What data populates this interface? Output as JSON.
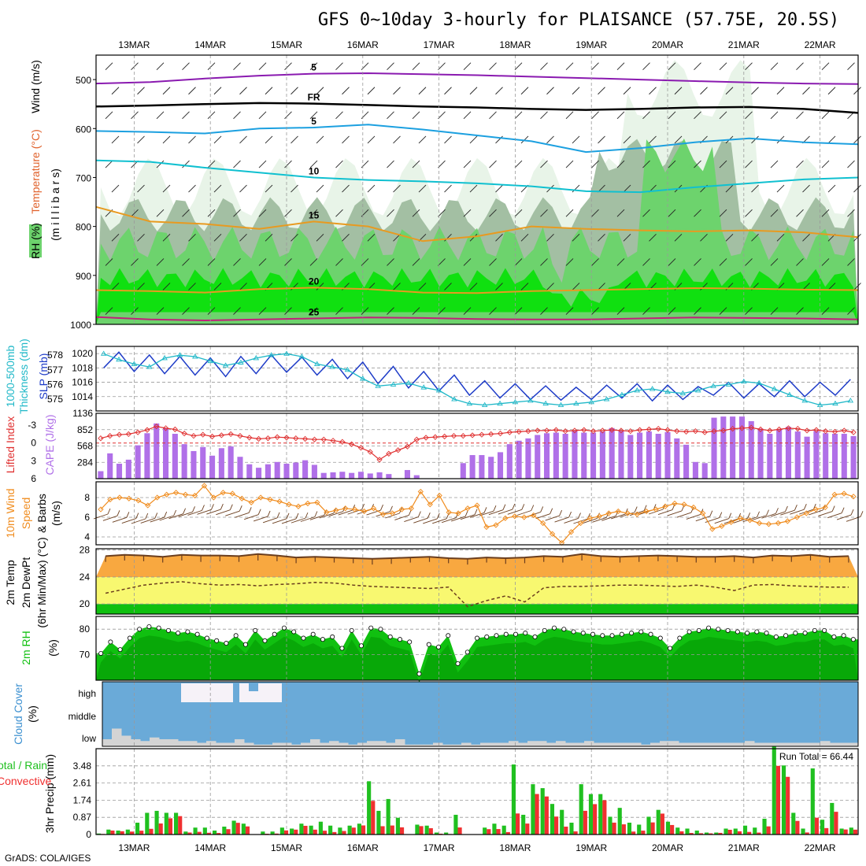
{
  "title": "GFS 0~10day 3-hourly for PLAISANCE (57.75E, 20.5S)",
  "credit": "GrADS: COLA/IGES",
  "colors": {
    "rh_light": "#e8f4e8",
    "rh_mid": "#c7d9c7",
    "rh_dark": "#a3bfa3",
    "rh_green": "#6dd36d",
    "rh_bright": "#10e010",
    "temp_purple": "#8a1ab0",
    "temp_blue": "#1ca0e0",
    "temp_cyan": "#10c0d0",
    "temp_orange": "#e89a20",
    "temp_magenta": "#c0207a",
    "slp": "#1e3cc8",
    "thickness": "#20b8c8",
    "cape": "#b070e8",
    "li": "#e03030",
    "wind10": "#f08c1e",
    "temp_band": "#f8a840",
    "dew_band": "#f8f870",
    "rh2m": "#10c010",
    "cloud": "#6aaad8",
    "cloud_low": "#d4d4d4",
    "cloud_high": "#f6f2f8",
    "precip_total": "#20c020",
    "precip_conv": "#f03030"
  },
  "chart_data": {
    "type": "multi-panel meteogram",
    "time_axis": {
      "labels": [
        "13MAR",
        "14MAR",
        "15MAR",
        "16MAR",
        "17MAR",
        "18MAR",
        "19MAR",
        "20MAR",
        "21MAR",
        "22MAR"
      ],
      "start_day": 12.5,
      "end_day": 22.5
    },
    "panels": [
      {
        "id": "profile",
        "ylabel_parts": [
          "RH (%)",
          "Temperature (°C)",
          "Wind (m/s)",
          "(m i l l i b a r s)"
        ],
        "yticks": [
          "500",
          "600",
          "700",
          "800",
          "900",
          "1000"
        ],
        "ylim": [
          450,
          1000
        ],
        "contours": [
          {
            "label": "5",
            "kind": "temp -5",
            "color": "purple",
            "level": [
              508,
              505,
              498,
              492,
              488,
              487,
              489,
              491,
              494,
              497,
              500,
              503,
              506,
              508,
              509
            ]
          },
          {
            "label": "FR",
            "kind": "freezing",
            "color": "black",
            "level": [
              555,
              553,
              550,
              548,
              549,
              552,
              555,
              557,
              560,
              562,
              560,
              557,
              556,
              560,
              568
            ]
          },
          {
            "label": "5",
            "kind": "temp 5",
            "color": "blue",
            "level": [
              605,
              607,
              610,
              600,
              598,
              592,
              602,
              614,
              626,
              648,
              640,
              628,
              620,
              628,
              632
            ]
          },
          {
            "label": "10",
            "kind": "temp 10",
            "color": "cyan",
            "level": [
              665,
              668,
              680,
              690,
              700,
              705,
              708,
              712,
              718,
              728,
              730,
              720,
              712,
              704,
              700
            ]
          },
          {
            "label": "15",
            "kind": "temp 15",
            "color": "orange",
            "level": [
              760,
              790,
              795,
              805,
              790,
              800,
              830,
              820,
              800,
              805,
              808,
              810,
              808,
              812,
              822
            ]
          },
          {
            "label": "20",
            "kind": "temp 20",
            "color": "orange",
            "level": [
              930,
              932,
              935,
              928,
              925,
              928,
              935,
              936,
              932,
              930,
              928,
              926,
              927,
              929,
              930
            ]
          },
          {
            "label": "25",
            "kind": "temp 25",
            "color": "magenta",
            "level": [
              985,
              990,
              992,
              990,
              988,
              986,
              987,
              989,
              990,
              990,
              988,
              986,
              987,
              988,
              990
            ]
          }
        ],
        "rh_shading_levels": [
          "30",
          "50",
          "70",
          "90"
        ],
        "wind_barbs": "mostly light easterly trade winds, 5-10 m/s"
      },
      {
        "id": "slp_thickness",
        "ylabel_parts": [
          "1000-500mb",
          "Thickness (dm)",
          "SLP (mb)"
        ],
        "left_ticks": [
          "578",
          "577",
          "576",
          "575"
        ],
        "right_ticks": [
          "1020",
          "1018",
          "1016",
          "1014"
        ],
        "series": [
          {
            "name": "SLP (mb)",
            "ylim": [
              1012,
              1021
            ],
            "values": [
              1018.0,
              1020.2,
              1017.5,
              1019.8,
              1017.2,
              1019.6,
              1017.0,
              1019.4,
              1016.8,
              1019.6,
              1017.2,
              1019.8,
              1017.4,
              1019.5,
              1017.0,
              1019.2,
              1016.5,
              1018.8,
              1015.8,
              1018.2,
              1015.2,
              1017.5,
              1014.8,
              1017.0,
              1014.2,
              1016.2,
              1013.8,
              1015.8,
              1013.6,
              1015.5,
              1013.5,
              1015.3,
              1013.6,
              1015.6,
              1013.8,
              1015.8,
              1013.4,
              1015.6,
              1013.6,
              1015.4,
              1014.2,
              1016.0,
              1013.8,
              1015.8,
              1014.0,
              1016.2,
              1014.0,
              1016.0,
              1014.2,
              1016.4
            ]
          },
          {
            "name": "Thickness (dm)",
            "ylim": [
              574.2,
              578.6
            ],
            "values": [
              578.1,
              577.7,
              577.4,
              577.2,
              577.8,
              578.0,
              577.9,
              577.6,
              577.3,
              577.5,
              577.8,
              578.0,
              578.1,
              577.9,
              577.4,
              577.2,
              577.0,
              576.4,
              575.9,
              576.0,
              576.1,
              575.8,
              575.6,
              575.0,
              574.7,
              574.6,
              574.7,
              574.8,
              574.9,
              574.7,
              574.6,
              574.7,
              574.8,
              575.0,
              575.3,
              575.6,
              575.7,
              575.5,
              575.4,
              575.6,
              575.9,
              576.0,
              576.2,
              576.1,
              575.7,
              575.3,
              574.9,
              574.6,
              574.7,
              574.9
            ]
          }
        ]
      },
      {
        "id": "cape_li",
        "ylabel_parts": [
          "Lifted Index",
          "CAPE (J/kg)"
        ],
        "left_ticks": [
          "-3",
          "0",
          "3",
          "6"
        ],
        "right_ticks": [
          "1136",
          "852",
          "568",
          "284"
        ],
        "series": [
          {
            "name": "CAPE (J/kg)",
            "ylim": [
              0,
              1136
            ],
            "values": [
              130,
              440,
              260,
              330,
              580,
              790,
              960,
              880,
              780,
              600,
              480,
              550,
              400,
              530,
              560,
              380,
              250,
              190,
              250,
              290,
              260,
              280,
              320,
              240,
              100,
              110,
              120,
              100,
              120,
              90,
              110,
              80,
              0,
              150,
              60,
              0,
              0,
              0,
              0,
              270,
              410,
              410,
              380,
              460,
              600,
              660,
              700,
              760,
              790,
              800,
              780,
              840,
              800,
              800,
              820,
              880,
              830,
              760,
              800,
              820,
              780,
              810,
              700,
              590,
              290,
              270,
              1060,
              1080,
              1080,
              1080,
              1000,
              870,
              780,
              860,
              900,
              820,
              730,
              830,
              790,
              780,
              780,
              740
            ]
          },
          {
            "name": "Lifted Index",
            "ylim": [
              6,
              -5
            ],
            "values": [
              -0.8,
              -1.2,
              -1.4,
              -1.5,
              -1.8,
              -2.2,
              -2.8,
              -2.5,
              -2.3,
              -1.6,
              -1.2,
              -1.4,
              -1.1,
              -1.3,
              -1.5,
              -1.2,
              -0.9,
              -0.7,
              -0.8,
              -1.0,
              -0.9,
              -0.8,
              -0.7,
              -0.6,
              -0.6,
              -0.4,
              -0.2,
              0.2,
              0.8,
              1.5,
              2.8,
              1.8,
              1.2,
              0.6,
              -0.6,
              -0.9,
              -1.0,
              -1.1,
              -1.2,
              -1.2,
              -1.3,
              -1.4,
              -1.5,
              -1.6,
              -1.8,
              -1.9,
              -2.0,
              -2.1,
              -2.1,
              -2.2,
              -2.0,
              -2.1,
              -2.2,
              -2.0,
              -2.1,
              -2.2,
              -2.1,
              -2.0,
              -2.2,
              -2.3,
              -2.4,
              -2.2,
              -2.0,
              -1.9,
              -2.0,
              -1.8,
              -2.0,
              -2.1,
              -2.4,
              -2.5,
              -2.6,
              -2.3,
              -2.1,
              -2.3,
              -2.5,
              -2.4,
              -2.1,
              -2.2,
              -2.0,
              -1.9,
              -2.1,
              -1.8
            ]
          }
        ]
      },
      {
        "id": "wind10m",
        "ylabel_parts": [
          "10m Wind",
          "Speed",
          "& Barbs",
          "(m/s)"
        ],
        "yticks": [
          "8",
          "6",
          "4"
        ],
        "ylim": [
          3.2,
          9.6
        ],
        "values": [
          6.8,
          7.8,
          8.0,
          7.9,
          7.7,
          7.2,
          8.0,
          8.3,
          8.5,
          8.3,
          8.2,
          9.2,
          8.0,
          8.5,
          8.4,
          7.9,
          7.5,
          8.0,
          7.8,
          7.6,
          7.3,
          7.1,
          7.4,
          7.5,
          6.5,
          6.7,
          6.9,
          6.8,
          6.6,
          6.9,
          6.3,
          6.4,
          6.8,
          6.9,
          8.6,
          7.3,
          8.2,
          6.5,
          6.4,
          6.9,
          7.2,
          5.0,
          5.2,
          5.9,
          6.1,
          6.0,
          6.2,
          5.4,
          4.3,
          3.4,
          4.5,
          5.4,
          5.9,
          6.1,
          6.4,
          6.6,
          6.4,
          6.3,
          6.6,
          6.8,
          7.1,
          7.4,
          7.3,
          7.0,
          6.4,
          4.8,
          5.1,
          5.5,
          5.9,
          5.7,
          5.4,
          5.3,
          5.4,
          5.6,
          6.0,
          6.4,
          6.8,
          7.0,
          8.3,
          8.4,
          8.1
        ]
      },
      {
        "id": "temp2m",
        "ylabel_parts": [
          "2m Temp",
          "2m DewPt",
          "(6hr Min/Max) (°C)"
        ],
        "yticks": [
          "28",
          "24",
          "20"
        ],
        "ylim": [
          18.5,
          28.2
        ],
        "temp_min": [
          26.6,
          26.8,
          26.7,
          26.5,
          26.8,
          26.6,
          26.7,
          26.6,
          26.8,
          26.7,
          26.4,
          26.6,
          26.5,
          26.4,
          26.2,
          26.3,
          26.5,
          26.6,
          26.4,
          26.2,
          26.5,
          26.3,
          26.4,
          26.6,
          26.5,
          26.8,
          26.6,
          26.5,
          26.6,
          26.7,
          26.6,
          26.5,
          26.5,
          26.6,
          26.4,
          26.7,
          26.6,
          26.8,
          26.5,
          26.5
        ],
        "temp_max": [
          27.1,
          27.3,
          27.2,
          27.0,
          27.3,
          27.2,
          27.2,
          27.1,
          27.4,
          27.2,
          26.9,
          27.0,
          26.9,
          26.8,
          26.7,
          26.8,
          26.9,
          27.0,
          26.8,
          26.7,
          26.9,
          26.8,
          26.9,
          27.1,
          27.0,
          27.4,
          27.1,
          27.0,
          27.1,
          27.2,
          27.1,
          27.0,
          27.0,
          27.1,
          26.9,
          27.2,
          27.1,
          27.3,
          27.0,
          27.1
        ],
        "dewpoint": [
          21.6,
          22.2,
          22.8,
          23.1,
          23.3,
          23.0,
          22.8,
          22.9,
          22.7,
          22.9,
          23.0,
          23.2,
          23.1,
          22.8,
          22.6,
          22.5,
          22.4,
          22.3,
          22.5,
          19.6,
          20.5,
          21.2,
          20.3,
          22.4,
          22.6,
          22.6,
          22.7,
          22.8,
          22.8,
          22.7,
          22.6,
          22.8,
          22.5,
          22.0,
          22.8,
          22.9,
          22.7,
          22.6,
          22.5,
          22.5
        ]
      },
      {
        "id": "rh2m",
        "ylabel_parts": [
          "2m RH",
          "(%)"
        ],
        "yticks": [
          "80",
          "70"
        ],
        "ylim": [
          60,
          85
        ],
        "values": [
          70.5,
          75.0,
          72.0,
          76.5,
          80.0,
          81.0,
          80.5,
          79.5,
          78.5,
          79.0,
          78.0,
          76.5,
          75.5,
          74.5,
          77.5,
          74.0,
          79.5,
          75.5,
          78.0,
          80.5,
          79.0,
          76.5,
          78.0,
          76.0,
          77.0,
          72.5,
          79.5,
          73.5,
          80.5,
          80.0,
          77.0,
          76.0,
          75.0,
          62.5,
          74.0,
          73.0,
          77.5,
          66.5,
          71.0,
          76.5,
          77.0,
          77.5,
          78.0,
          78.0,
          78.5,
          77.0,
          79.5,
          80.5,
          80.0,
          79.0,
          78.5,
          78.0,
          77.5,
          77.5,
          78.0,
          78.5,
          79.0,
          78.0,
          76.5,
          72.5,
          76.5,
          79.0,
          79.5,
          80.5,
          80.0,
          79.5,
          79.0,
          78.5,
          79.0,
          78.5,
          77.0,
          77.5,
          78.5,
          78.5,
          79.5,
          79.5,
          77.0,
          77.5,
          76.0
        ]
      },
      {
        "id": "cloud",
        "ylabel_parts": [
          "Cloud Cover",
          "(%)"
        ],
        "level_labels": [
          "high",
          "middle",
          "low"
        ],
        "low_cover_pct": [
          20,
          50,
          30,
          20,
          15,
          25,
          20,
          20,
          15,
          15,
          10,
          15,
          10,
          10,
          20,
          10,
          5,
          5,
          10,
          10,
          5,
          10,
          20,
          10,
          15,
          10,
          5,
          10,
          15,
          15,
          10,
          20,
          5,
          5,
          5,
          10,
          5,
          5,
          10,
          5,
          10,
          10,
          10,
          15,
          10,
          15,
          15,
          10,
          15,
          10,
          10,
          15,
          10,
          10,
          10,
          10,
          10,
          5,
          10,
          15,
          15,
          10,
          10,
          10,
          10,
          10,
          10,
          10,
          15,
          10,
          10,
          10,
          10,
          10,
          10,
          10,
          15,
          10,
          10,
          10
        ]
      },
      {
        "id": "precip",
        "ylabel_parts": [
          "3hr Precip (mm)",
          "Total / Rain",
          "Convective"
        ],
        "yticks": [
          "0",
          "0.87",
          "1.74",
          "2.61",
          "3.48"
        ],
        "ylim": [
          0,
          4.35
        ],
        "run_total_label": "Run Total = 66.44",
        "total": [
          0.05,
          0.25,
          0.2,
          0.25,
          0.6,
          1.1,
          1.2,
          1.1,
          1.1,
          0.15,
          0.35,
          0.35,
          0.2,
          0.4,
          0.7,
          0.55,
          0.0,
          0.15,
          0.15,
          0.35,
          0.3,
          0.55,
          0.45,
          0.65,
          0.45,
          0.35,
          0.45,
          0.55,
          2.7,
          1.2,
          1.8,
          0.85,
          0.0,
          0.5,
          0.45,
          0.1,
          0.1,
          1.0,
          0.0,
          0.0,
          0.35,
          0.55,
          0.45,
          3.55,
          1.0,
          2.55,
          2.35,
          1.55,
          1.25,
          0.6,
          2.55,
          2.05,
          2.05,
          0.9,
          1.35,
          0.6,
          0.5,
          0.9,
          1.25,
          0.65,
          0.35,
          0.3,
          0.2,
          0.1,
          0.1,
          0.3,
          0.3,
          0.45,
          0.35,
          0.8,
          4.45,
          3.5,
          1.1,
          0.3,
          3.35,
          0.75,
          1.6,
          0.3,
          0.35
        ],
        "conv_fraction": 0.55
      }
    ]
  }
}
